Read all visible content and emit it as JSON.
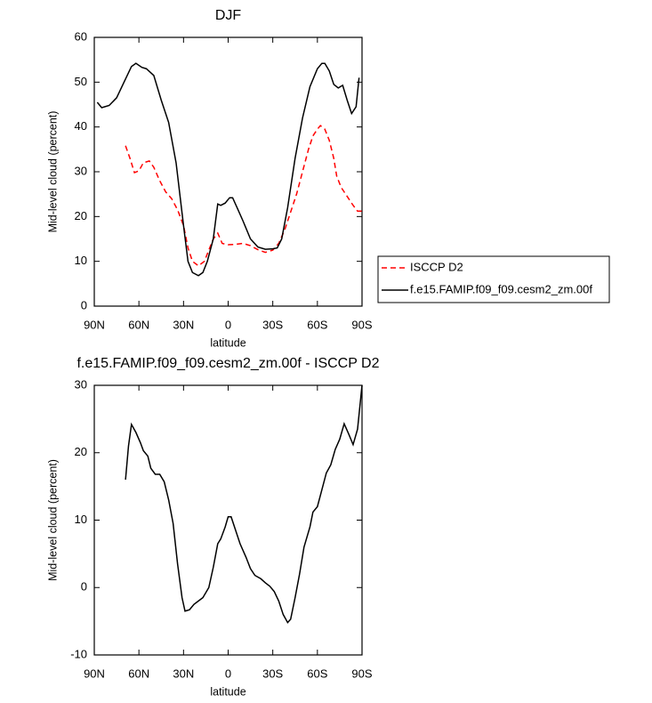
{
  "chart_data": [
    {
      "type": "line",
      "title": "DJF",
      "xlabel": "latitude",
      "ylabel": "Mid-level cloud (percent)",
      "xlim": [
        90,
        -90
      ],
      "ylim": [
        0,
        60
      ],
      "xticks": [
        {
          "value": 90,
          "label": "90N"
        },
        {
          "value": 60,
          "label": "60N"
        },
        {
          "value": 30,
          "label": "30N"
        },
        0,
        {
          "value": -30,
          "label": "30S"
        },
        {
          "value": -60,
          "label": "60S"
        },
        {
          "value": -90,
          "label": "90S"
        }
      ],
      "yticks": [
        0,
        10,
        20,
        30,
        40,
        50,
        60
      ],
      "legend": "outside-right",
      "series": [
        {
          "name": "ISCCP D2",
          "color": "#ff0000",
          "line_style": "dashed",
          "x": [
            69,
            66,
            63,
            60,
            57,
            53,
            50,
            46,
            42,
            38,
            34,
            30,
            27,
            24,
            20,
            16,
            13,
            10,
            7,
            4,
            0,
            -5,
            -10,
            -15,
            -20,
            -25,
            -30,
            -34,
            -38,
            -42,
            -46,
            -50,
            -54,
            -57,
            -60,
            -62,
            -65,
            -68,
            -71,
            -73,
            -76,
            -80,
            -84,
            -87,
            -90
          ],
          "values": [
            35.8,
            33,
            29.8,
            30.2,
            32,
            32.4,
            31,
            28,
            25.5,
            24,
            21.5,
            18,
            13,
            10,
            9,
            10,
            12.5,
            15,
            16.3,
            14,
            13.7,
            13.8,
            14,
            13.5,
            12.6,
            12,
            12.5,
            14,
            17,
            21,
            25,
            30,
            35,
            38,
            39.5,
            40.3,
            39.5,
            37,
            33,
            29,
            26.5,
            24.5,
            22.5,
            21.2,
            21.2
          ]
        },
        {
          "name": "f.e15.FAMIP.f09_f09.cesm2_zm.00f",
          "color": "#000000",
          "line_style": "solid",
          "x": [
            88,
            85,
            80,
            75,
            70,
            65,
            62,
            58,
            55,
            50,
            45,
            40,
            35,
            30,
            27,
            24,
            20,
            17,
            14,
            10,
            7,
            5,
            2,
            -1,
            -3,
            -6,
            -10,
            -15,
            -20,
            -25,
            -30,
            -33,
            -36,
            -40,
            -45,
            -50,
            -55,
            -60,
            -63,
            -65,
            -68,
            -71,
            -74,
            -77,
            -80,
            -83,
            -86,
            -88
          ],
          "values": [
            45.5,
            44.3,
            44.8,
            46.5,
            50,
            53.5,
            54.2,
            53.3,
            53,
            51.5,
            46,
            41,
            32,
            18,
            10,
            7.5,
            6.8,
            7.5,
            10,
            15,
            22.8,
            22.5,
            23,
            24.2,
            24.2,
            22,
            19,
            15,
            13.2,
            12.7,
            12.8,
            13,
            15,
            22,
            33,
            42,
            49,
            53,
            54.2,
            54.2,
            52.5,
            49.5,
            48.7,
            49.3,
            46,
            43,
            44.5,
            51
          ]
        }
      ]
    },
    {
      "type": "line",
      "title": "f.e15.FAMIP.f09_f09.cesm2_zm.00f - ISCCP D2",
      "xlabel": "latitude",
      "ylabel": "Mid-level cloud (percent)",
      "xlim": [
        90,
        -90
      ],
      "ylim": [
        -10,
        30
      ],
      "xticks": [
        {
          "value": 90,
          "label": "90N"
        },
        {
          "value": 60,
          "label": "60N"
        },
        {
          "value": 30,
          "label": "30N"
        },
        0,
        {
          "value": -30,
          "label": "30S"
        },
        {
          "value": -60,
          "label": "60S"
        },
        {
          "value": -90,
          "label": "90S"
        }
      ],
      "yticks": [
        -10,
        0,
        10,
        20,
        30
      ],
      "color": "#000000",
      "x": [
        69,
        67,
        65,
        62,
        59,
        57,
        54,
        52,
        49,
        46,
        43,
        40,
        37,
        34,
        31,
        29,
        26,
        23,
        20,
        17,
        13,
        10,
        7,
        5,
        2,
        0,
        -2,
        -5,
        -8,
        -12,
        -15,
        -18,
        -22,
        -25,
        -28,
        -31,
        -34,
        -37,
        -40,
        -42,
        -45,
        -48,
        -51,
        -55,
        -57,
        -60,
        -63,
        -66,
        -69,
        -72,
        -75,
        -78,
        -81,
        -84,
        -87,
        -90
      ],
      "values": [
        16,
        21,
        24.2,
        23,
        21.5,
        20.3,
        19.5,
        17.7,
        16.8,
        16.8,
        15.7,
        13,
        9.5,
        3.5,
        -1.5,
        -3.5,
        -3.3,
        -2.5,
        -2,
        -1.5,
        0,
        3,
        6.5,
        7.2,
        9,
        10.5,
        10.5,
        8.5,
        6.5,
        4.5,
        2.8,
        1.8,
        1.3,
        0.7,
        0.2,
        -0.6,
        -2,
        -4,
        -5.2,
        -4.7,
        -1.5,
        2,
        6,
        9,
        11.2,
        12,
        14.5,
        17,
        18.2,
        20.5,
        22,
        24.3,
        22.8,
        21.2,
        23.5,
        30
      ]
    }
  ]
}
